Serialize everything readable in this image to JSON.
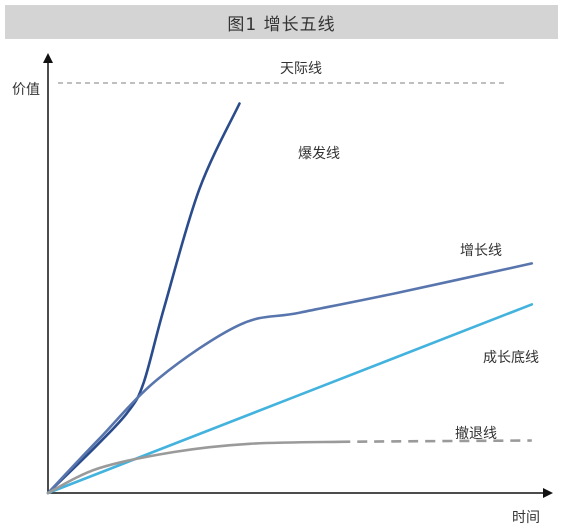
{
  "title": "图1  增长五线",
  "chart_data": {
    "type": "line",
    "title": "图1  增长五线",
    "xlabel": "时间",
    "ylabel": "价值",
    "xlim": [
      0,
      100
    ],
    "ylim": [
      0,
      100
    ],
    "grid": false,
    "legend": "none",
    "reference_line": {
      "name": "天际线",
      "y": 100,
      "style": "dashed",
      "color": "#999999"
    },
    "series": [
      {
        "name": "爆发线",
        "color": "#2b4c8c",
        "style": "solid",
        "points": [
          [
            0,
            0
          ],
          [
            10,
            12
          ],
          [
            16,
            20
          ],
          [
            19,
            27
          ],
          [
            23,
            45
          ],
          [
            30,
            74
          ],
          [
            38,
            95
          ]
        ]
      },
      {
        "name": "增长线",
        "color": "#5876ad",
        "style": "solid",
        "points": [
          [
            0,
            0
          ],
          [
            10,
            13
          ],
          [
            22,
            28
          ],
          [
            38,
            41
          ],
          [
            50,
            44
          ],
          [
            70,
            49
          ],
          [
            96,
            56
          ]
        ]
      },
      {
        "name": "成长底线",
        "color": "#43b3de",
        "style": "solid",
        "points": [
          [
            0,
            0
          ],
          [
            96,
            46
          ]
        ]
      },
      {
        "name": "撤退线",
        "color": "#9a9a9a",
        "style": "solid-then-dashed",
        "dash_from_x": 58,
        "points": [
          [
            0,
            0
          ],
          [
            10,
            6
          ],
          [
            25,
            10
          ],
          [
            40,
            12
          ],
          [
            58,
            12.5
          ],
          [
            96,
            12.8
          ]
        ]
      }
    ]
  }
}
